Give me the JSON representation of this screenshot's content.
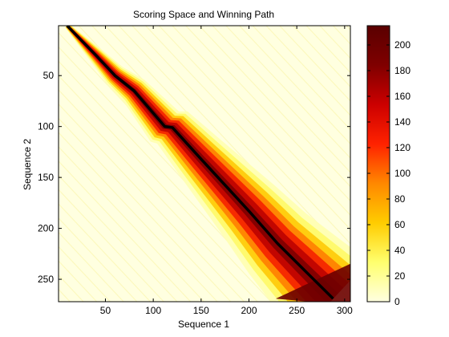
{
  "chart_data": {
    "type": "heatmap",
    "title": "Scoring Space and Winning Path",
    "xlabel": "Sequence 1",
    "ylabel": "Sequence 2",
    "xlim": [
      1,
      306
    ],
    "ylim": [
      1,
      272
    ],
    "y_reversed": true,
    "x_ticks": [
      50,
      100,
      150,
      200,
      250,
      300
    ],
    "y_ticks": [
      50,
      100,
      150,
      200,
      250
    ],
    "colorbar": {
      "range": [
        0,
        215
      ],
      "ticks": [
        0,
        20,
        40,
        60,
        80,
        100,
        120,
        140,
        160,
        180,
        200
      ],
      "colormap": "hot-reversed",
      "colors": [
        "#ffffe0",
        "#ffff6e",
        "#ffcc00",
        "#ff8800",
        "#ff2200",
        "#cc0000",
        "#7f0000",
        "#5a0000"
      ]
    },
    "path": {
      "color": "#000000",
      "points": [
        [
          10,
          1
        ],
        [
          40,
          30
        ],
        [
          45,
          35
        ],
        [
          60,
          50
        ],
        [
          80,
          65
        ],
        [
          112,
          100
        ],
        [
          120,
          101
        ],
        [
          150,
          132
        ],
        [
          200,
          183
        ],
        [
          230,
          215
        ],
        [
          260,
          243
        ],
        [
          288,
          269
        ]
      ]
    },
    "background_color": "#ffffe0"
  }
}
